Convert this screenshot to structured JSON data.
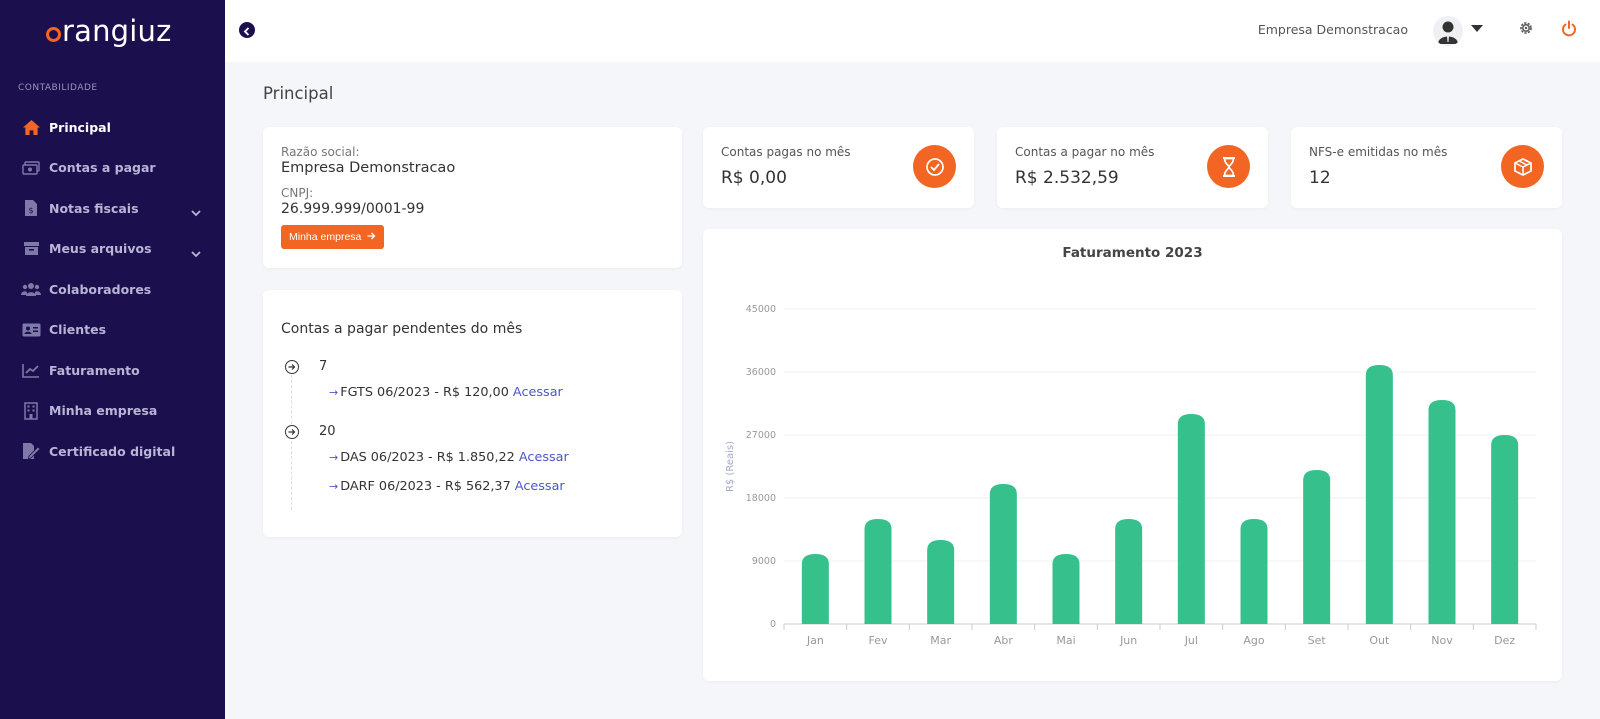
{
  "app": {
    "logo_text": "rangiuz",
    "section_label": "CONTABILIDADE"
  },
  "colors": {
    "sidebar_bg": "#1b0f4e",
    "accent": "#f26522",
    "bar": "#36c08c",
    "link": "#4b57c6"
  },
  "sidebar": {
    "items": [
      {
        "label": "Principal",
        "icon": "home-icon",
        "active": true
      },
      {
        "label": "Contas a pagar",
        "icon": "money-icon"
      },
      {
        "label": "Notas fiscais",
        "icon": "invoice-icon",
        "has_children": true
      },
      {
        "label": "Meus arquivos",
        "icon": "archive-icon",
        "has_children": true
      },
      {
        "label": "Colaboradores",
        "icon": "users-icon"
      },
      {
        "label": "Clientes",
        "icon": "id-card-icon"
      },
      {
        "label": "Faturamento",
        "icon": "chart-line-icon"
      },
      {
        "label": "Minha empresa",
        "icon": "building-icon"
      },
      {
        "label": "Certificado digital",
        "icon": "certificate-icon"
      }
    ]
  },
  "topbar": {
    "company_name": "Empresa Demonstracao"
  },
  "main": {
    "page_title": "Principal",
    "company": {
      "razao_label": "Razão social:",
      "razao_value": "Empresa Demonstracao",
      "cnpj_label": "CNPJ:",
      "cnpj_value": "26.999.999/0001-99",
      "button_label": "Minha empresa"
    },
    "stats": [
      {
        "title": "Contas pagas no mês",
        "value": "R$ 0,00",
        "icon": "check-circle-icon"
      },
      {
        "title": "Contas a pagar no mês",
        "value": "R$ 2.532,59",
        "icon": "hourglass-icon"
      },
      {
        "title": "NFS-e emitidas no mês",
        "value": "12",
        "icon": "box-icon"
      }
    ],
    "pending": {
      "title": "Contas a pagar pendentes do mês",
      "link_label": "Acessar",
      "groups": [
        {
          "day": "7",
          "items": [
            "FGTS 06/2023 - R$ 120,00"
          ]
        },
        {
          "day": "20",
          "items": [
            "DAS 06/2023 - R$ 1.850,22",
            "DARF 06/2023 - R$ 562,37"
          ]
        }
      ]
    }
  },
  "chart_data": {
    "type": "bar",
    "title": "Faturamento 2023",
    "xlabel": "",
    "ylabel": "R$ (Reais)",
    "categories": [
      "Jan",
      "Fev",
      "Mar",
      "Abr",
      "Mai",
      "Jun",
      "Jul",
      "Ago",
      "Set",
      "Out",
      "Nov",
      "Dez"
    ],
    "values": [
      10000,
      15000,
      12000,
      20000,
      10000,
      15000,
      30000,
      15000,
      22000,
      37000,
      32000,
      27000
    ],
    "ylim": [
      0,
      45000
    ],
    "yticks": [
      "0",
      "9000",
      "18000",
      "27000",
      "36000",
      "45000"
    ],
    "grid": true
  }
}
